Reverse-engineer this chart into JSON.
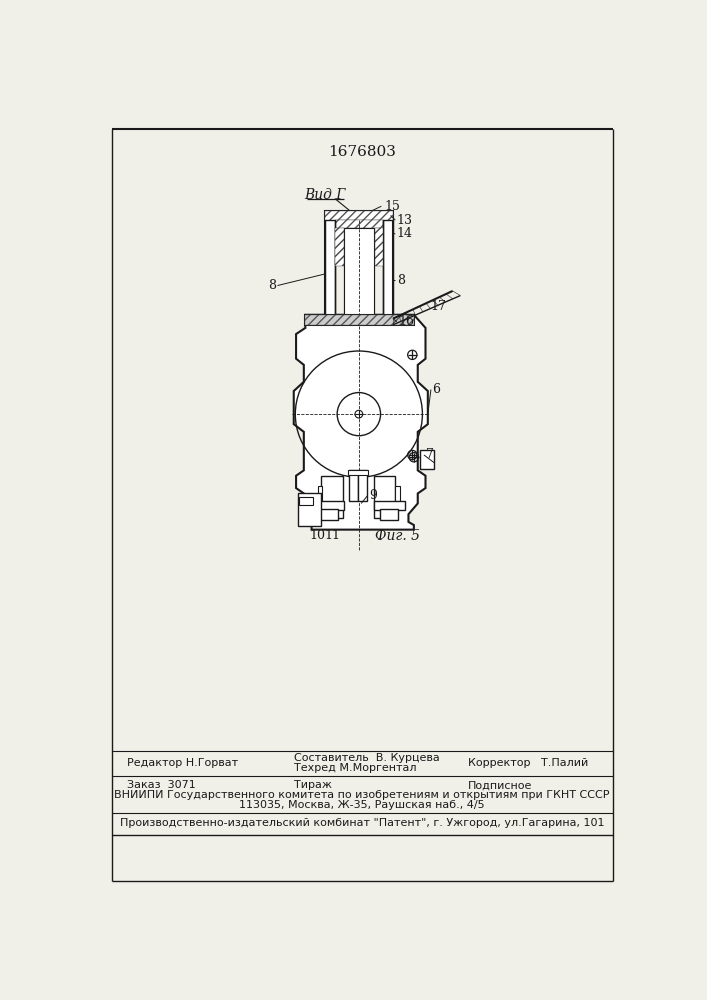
{
  "patent_number": "1676803",
  "fig_label": "Фиг. 5",
  "view_label": "Вид Г",
  "background_color": "#f0efe8",
  "line_color": "#1a1a1a",
  "footer": {
    "line1_left": "Редактор Н.Горват",
    "line1_center_top": "Составитель  В. Курцева",
    "line1_center_bot": "Техред М.Моргентал",
    "line1_right": "Корректор   Т.Палий",
    "line2_left": "Заказ  3071",
    "line2_center": "Тираж",
    "line2_right": "Подписное",
    "line3": "ВНИИПИ Государственного комитета по изобретениям и открытиям при ГКНТ СССР",
    "line4": "113035, Москва, Ж-35, Раушская наб., 4/5",
    "line5": "Производственно-издательский комбинат \"Патент\", г. Ужгород, ул.Гагарина, 101"
  }
}
